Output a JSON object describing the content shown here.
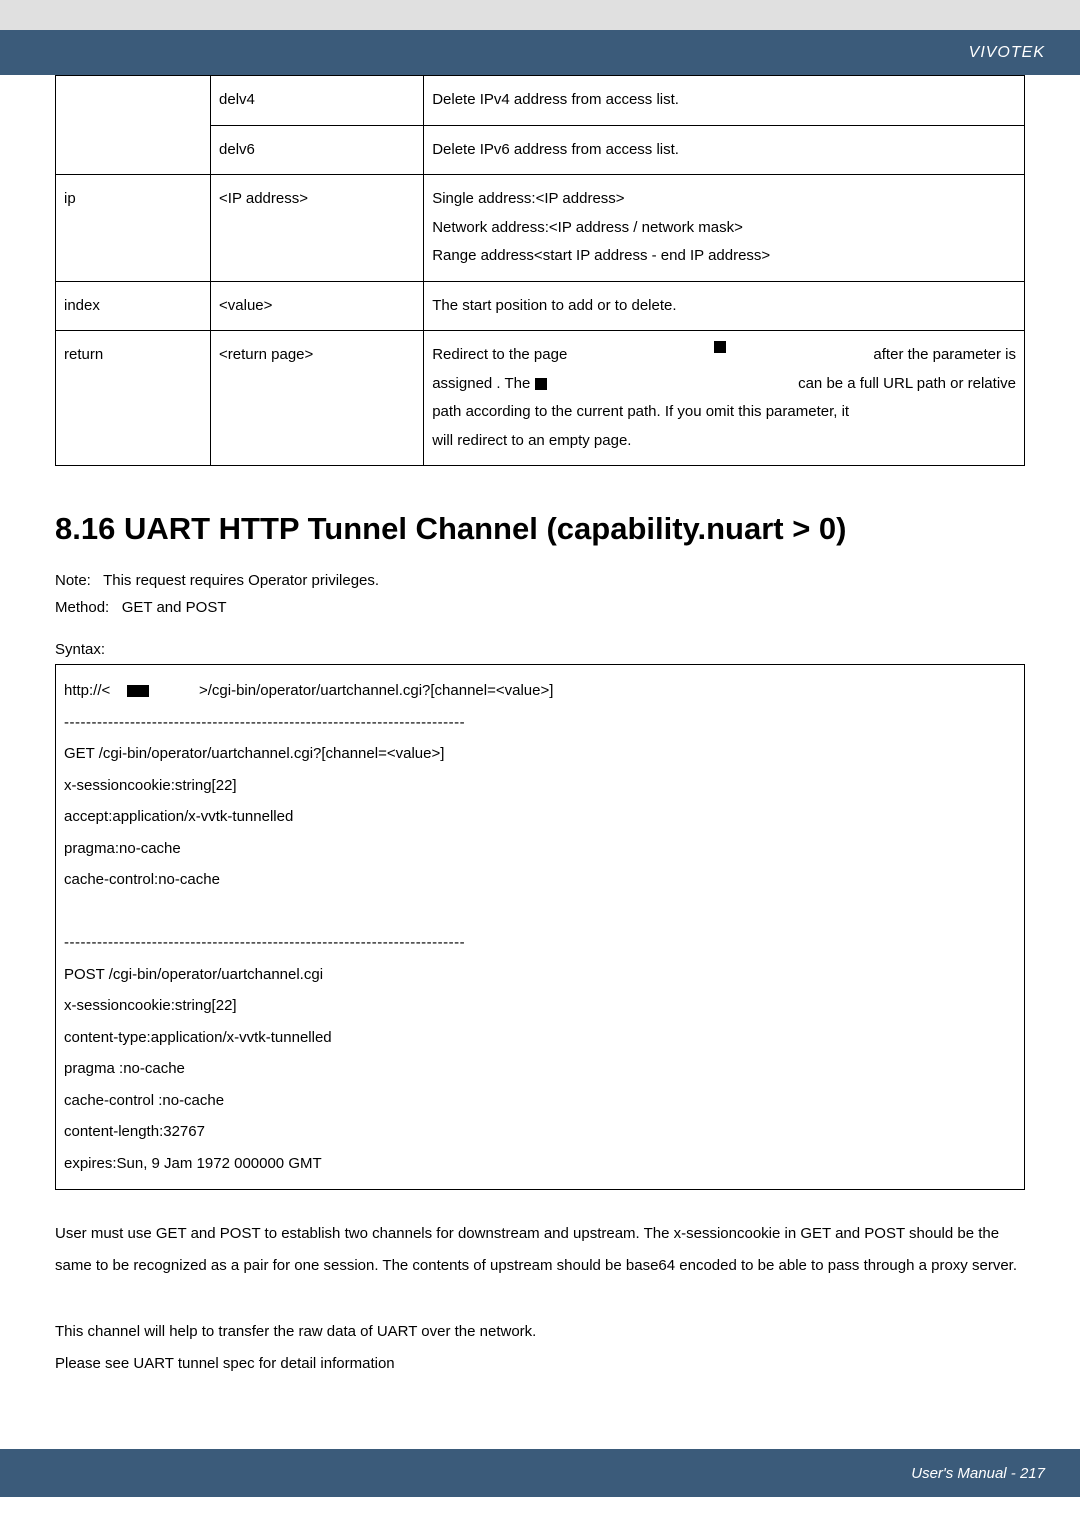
{
  "brand": "VIVOTEK",
  "param_table": {
    "rows": [
      {
        "c1": "",
        "c2": "delv4",
        "c3": "Delete IPv4 address from access list."
      },
      {
        "c1": "",
        "c2": "delv6",
        "c3": "Delete IPv6 address from access list."
      },
      {
        "c1": "ip",
        "c2": "<IP address>",
        "c3_line1": "Single address:<IP address>",
        "c3_line2": "Network address:<IP address / network mask>",
        "c3_line3": "Range address<start IP address - end IP address>"
      },
      {
        "c1": "index",
        "c2": "<value>",
        "c3": "The start position to add or to delete."
      },
      {
        "c1": "return",
        "c2": "<return page>",
        "ret_a": "Redirect to the page",
        "ret_b": "after the parameter is",
        "ret_c": "assigned . The",
        "ret_d": "can be a full URL path or relative",
        "ret_e": "path according to the current path. If you omit this parameter, it",
        "ret_f": "will redirect to an empty page."
      }
    ]
  },
  "section_title": "8.16 UART HTTP Tunnel Channel (capability.nuart > 0)",
  "note_label": "Note:",
  "note_text": "This request requires Operator privileges.",
  "method_label": "Method:",
  "method_text": "GET and POST",
  "syntax_label": "Syntax:",
  "syntax": {
    "l1a": "http://<",
    "l1b": ">/cgi-bin/operator/uartchannel.cgi?[channel=<value>]",
    "dash": "-------------------------------------------------------------------------",
    "g1": "GET /cgi-bin/operator/uartchannel.cgi?[channel=<value>]",
    "g2": "x-sessioncookie:string[22]",
    "g3": "accept:application/x-vvtk-tunnelled",
    "g4": "pragma:no-cache",
    "g5": "cache-control:no-cache",
    "p1": "POST /cgi-bin/operator/uartchannel.cgi",
    "p2": "x-sessioncookie:string[22]",
    "p3": "content-type:application/x-vvtk-tunnelled",
    "p4": "pragma :no-cache",
    "p5": "cache-control :no-cache",
    "p6": "content-length:32767",
    "p7": "expires:Sun, 9 Jam 1972 000000 GMT"
  },
  "body1": "User must use GET and POST to establish two channels for downstream and upstream. The x-sessioncookie in GET and POST should be the same to be recognized as a pair for one session. The contents of upstream should be base64 encoded to be able to pass through a proxy server.",
  "body2a": "This channel will help to transfer the raw data of UART over the network.",
  "body2b": "Please see UART tunnel spec for detail information",
  "footer": "User's Manual - 217"
}
